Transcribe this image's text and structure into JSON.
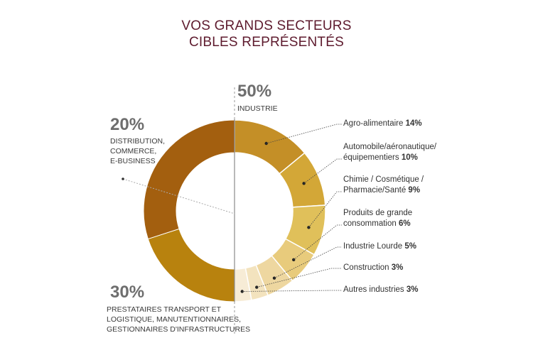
{
  "title": [
    "VOS GRANDS SECTEURS",
    "CIBLES REPRÉSENTÉS"
  ],
  "chart_data": {
    "type": "pie",
    "style": "donut",
    "groups": [
      {
        "value_label": "50%",
        "name": "INDUSTRIE",
        "value": 50
      },
      {
        "value_label": "20%",
        "name_lines": [
          "DISTRIBUTION,",
          "COMMERCE,",
          "E-BUSINESS"
        ],
        "value": 20,
        "color": "#b8820e"
      },
      {
        "value_label": "30%",
        "name_lines": [
          "PRESTATAIRES TRANSPORT ET",
          "LOGISTIQUE, MANUTENTIONNAIRES,",
          "GESTIONNAIRES D'INFRASTRUCTURES"
        ],
        "value": 30,
        "color": "#a35f0f"
      }
    ],
    "slices": [
      {
        "label": "Agro-alimentaire",
        "value": 14,
        "value_label": "14%",
        "color": "#c48f27"
      },
      {
        "label_lines": [
          "Automobile/aéronautique/",
          "équipementiers"
        ],
        "value": 10,
        "value_label": "10%",
        "color": "#d3a737"
      },
      {
        "label_lines": [
          "Chimie / Cosmétique /",
          "Pharmacie/Santé"
        ],
        "value": 9,
        "value_label": "9%",
        "color": "#e0c05a"
      },
      {
        "label_lines": [
          "Produits de grande",
          "consommation"
        ],
        "value": 6,
        "value_label": "6%",
        "color": "#e8cb7c"
      },
      {
        "label": "Industrie Lourde",
        "value": 5,
        "value_label": "5%",
        "color": "#eed7a0"
      },
      {
        "label": "Construction",
        "value": 3,
        "value_label": "3%",
        "color": "#f3e3be"
      },
      {
        "label": "Autres industries",
        "value": 3,
        "value_label": "3%",
        "color": "#f7ecd6"
      }
    ]
  }
}
